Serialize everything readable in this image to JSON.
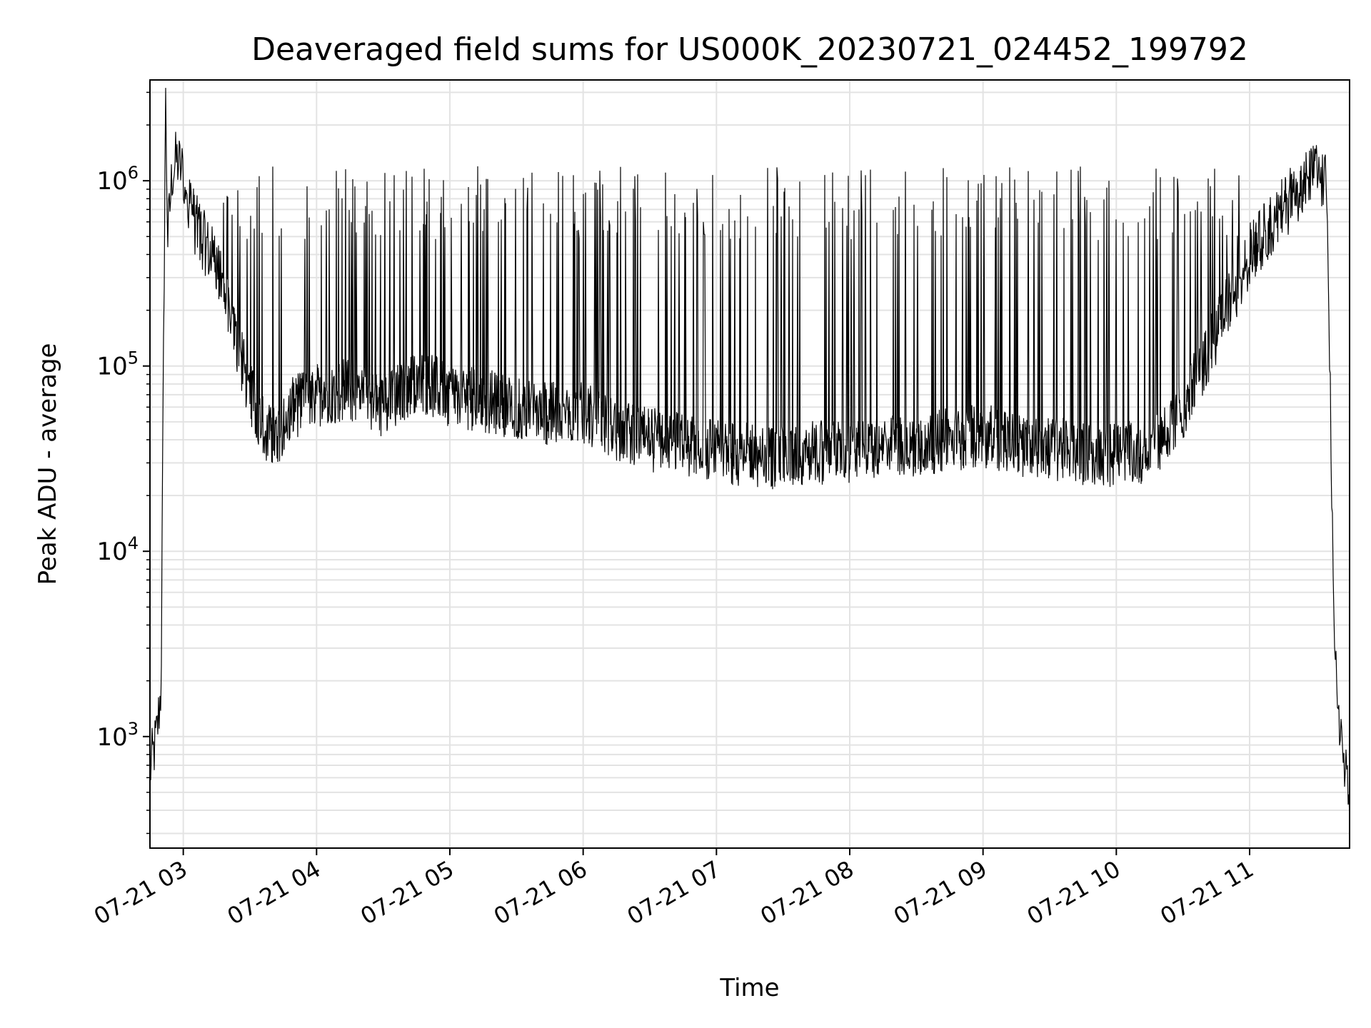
{
  "chart_data": {
    "type": "line",
    "title": "Deaveraged field sums for US000K_20230721_024452_199792",
    "xlabel": "Time",
    "ylabel": "Peak ADU - average",
    "yscale": "log",
    "ylim": [
      250,
      3500000
    ],
    "xlim": [
      "2023-07-21 02:45",
      "2023-07-21 11:45"
    ],
    "x_ticks": [
      "07-21 03",
      "07-21 04",
      "07-21 05",
      "07-21 06",
      "07-21 07",
      "07-21 08",
      "07-21 09",
      "07-21 10",
      "07-21 11"
    ],
    "y_ticks": [
      {
        "base": "10",
        "exp": "3",
        "value": 1000
      },
      {
        "base": "10",
        "exp": "4",
        "value": 10000
      },
      {
        "base": "10",
        "exp": "5",
        "value": 100000
      },
      {
        "base": "10",
        "exp": "6",
        "value": 1000000
      }
    ],
    "grid": true,
    "line_color": "#000000",
    "series": [
      {
        "x": [
          "02:45",
          "02:48",
          "02:50",
          "02:52",
          "02:53",
          "02:55",
          "02:57",
          "03:00",
          "03:05",
          "03:10",
          "03:15",
          "03:20",
          "03:25",
          "03:30",
          "03:35",
          "03:40",
          "03:50",
          "04:00",
          "04:15",
          "04:30",
          "04:45",
          "05:00",
          "05:15",
          "05:30",
          "05:45",
          "06:00",
          "06:15",
          "06:30",
          "06:45",
          "07:00",
          "07:15",
          "07:30",
          "07:45",
          "08:00",
          "08:15",
          "08:30",
          "08:45",
          "09:00",
          "09:15",
          "09:30",
          "09:45",
          "10:00",
          "10:15",
          "10:30",
          "10:45",
          "11:00",
          "11:15",
          "11:25",
          "11:30",
          "11:35",
          "11:38",
          "11:40",
          "11:42",
          "11:45"
        ],
        "y": [
          650,
          1000,
          1800,
          3000000,
          480000,
          1100000,
          1300000,
          1100000,
          600000,
          450000,
          350000,
          200000,
          120000,
          70000,
          50000,
          40000,
          60000,
          70000,
          75000,
          60000,
          85000,
          70000,
          65000,
          60000,
          55000,
          55000,
          45000,
          40000,
          38000,
          35000,
          33000,
          32000,
          34000,
          35000,
          37000,
          38000,
          40000,
          42000,
          38000,
          36000,
          34000,
          33000,
          35000,
          60000,
          150000,
          400000,
          700000,
          1000000,
          1100000,
          900000,
          2800,
          1500,
          800,
          400
        ]
      }
    ]
  }
}
